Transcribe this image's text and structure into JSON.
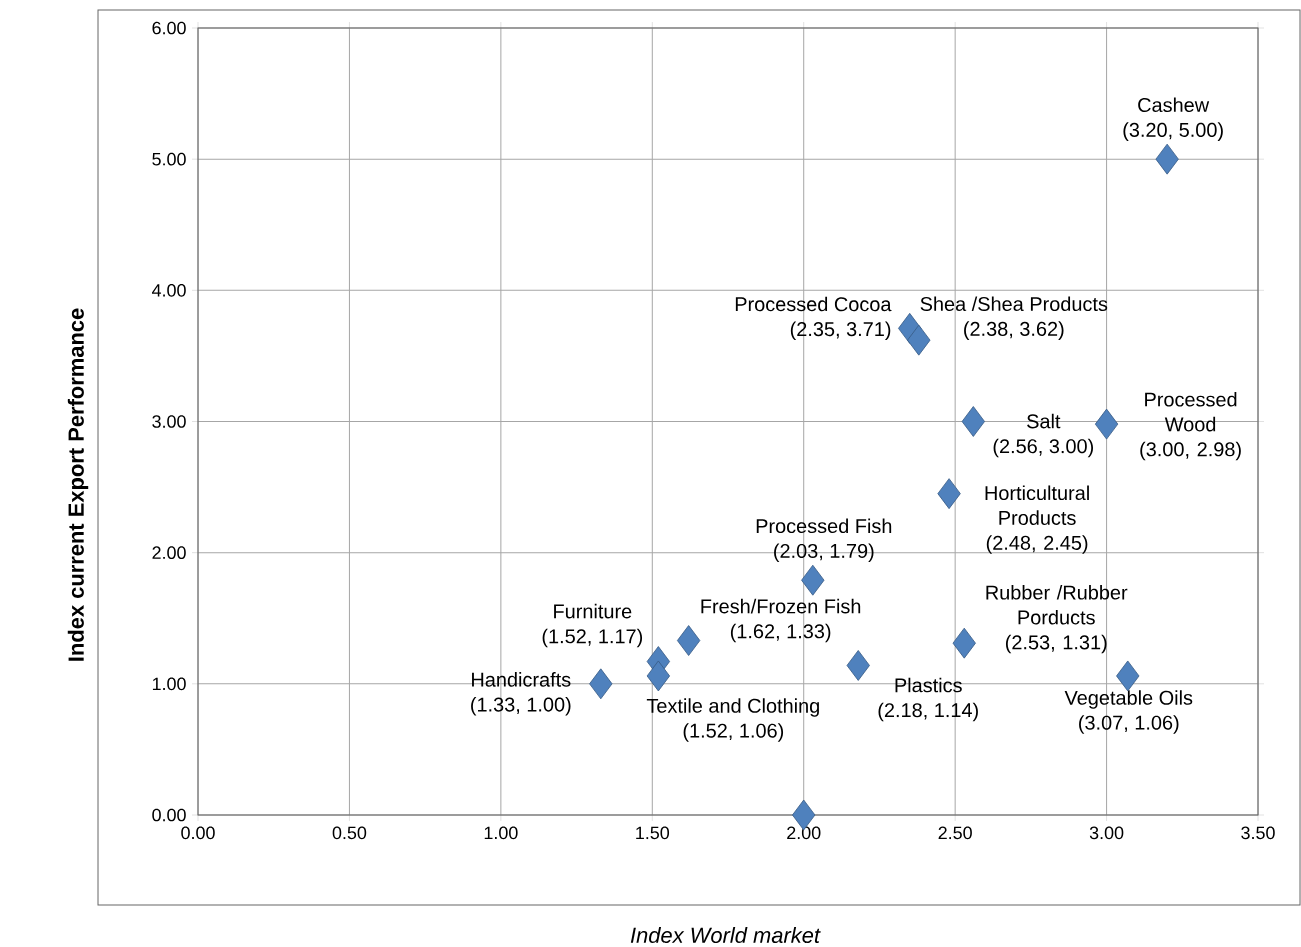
{
  "chart_data": {
    "type": "scatter",
    "xlabel": "Index World market",
    "ylabel": "Index current Export Performance",
    "x": [
      3.2,
      2.35,
      2.38,
      2.56,
      3.0,
      2.48,
      2.03,
      1.62,
      1.52,
      1.52,
      1.33,
      2.18,
      2.53,
      3.07,
      2.0
    ],
    "values": [
      5.0,
      3.71,
      3.62,
      3.0,
      2.98,
      2.45,
      1.79,
      1.33,
      1.17,
      1.06,
      1.0,
      1.14,
      1.31,
      1.06,
      0.0
    ],
    "value_labels": [
      "(3.20, 5.00)",
      "(2.35, 3.71)",
      "(2.38, 3.62)",
      "(2.56, 3.00)",
      "(3.00, 2.98)",
      "(2.48, 2.45)",
      "(2.03, 1.79)",
      "(1.62, 1.33)",
      "(1.52, 1.17)",
      "(1.52, 1.06)",
      "(1.33, 1.00)",
      "(2.18, 1.14)",
      "(2.53, 1.31)",
      "(3.07, 1.06)",
      null
    ],
    "annotations": [
      {
        "text": "Cashew",
        "x": 3.2,
        "y": 5.0
      },
      {
        "text": "Processed Cocoa",
        "x": 2.35,
        "y": 3.71
      },
      {
        "text": "Shea /Shea Products",
        "x": 2.38,
        "y": 3.62
      },
      {
        "text": "Salt",
        "x": 2.56,
        "y": 3.0
      },
      {
        "text": "Processed Wood",
        "x": 3.0,
        "y": 2.98
      },
      {
        "text": "Horticultural Products",
        "x": 2.48,
        "y": 2.45
      },
      {
        "text": "Processed Fish",
        "x": 2.03,
        "y": 1.79
      },
      {
        "text": "Fresh/Frozen Fish",
        "x": 1.62,
        "y": 1.33
      },
      {
        "text": "Furniture",
        "x": 1.52,
        "y": 1.17
      },
      {
        "text": "Textile and Clothing",
        "x": 1.52,
        "y": 1.06
      },
      {
        "text": "Handicrafts",
        "x": 1.33,
        "y": 1.0
      },
      {
        "text": "Plastics",
        "x": 2.18,
        "y": 1.14
      },
      {
        "text": "Rubber /Rubber Porducts",
        "x": 2.53,
        "y": 1.31
      },
      {
        "text": "Vegetable Oils",
        "x": 3.07,
        "y": 1.06
      }
    ],
    "xlim": [
      0,
      3.5
    ],
    "ylim": [
      0,
      6
    ],
    "xticks": [
      {
        "value": 0,
        "label": "0.00"
      },
      {
        "value": 0.5,
        "label": "0.50"
      },
      {
        "value": 1,
        "label": "1.00"
      },
      {
        "value": 1.5,
        "label": "1.50"
      },
      {
        "value": 2,
        "label": "2.00"
      },
      {
        "value": 2.5,
        "label": "2.50"
      },
      {
        "value": 3,
        "label": "3.00"
      },
      {
        "value": 3.5,
        "label": "3.50"
      }
    ],
    "yticks": [
      {
        "value": 0,
        "label": "0.00"
      },
      {
        "value": 1,
        "label": "1.00"
      },
      {
        "value": 2,
        "label": "2.00"
      },
      {
        "value": 3,
        "label": "3.00"
      },
      {
        "value": 4,
        "label": "4.00"
      },
      {
        "value": 5,
        "label": "5.00"
      },
      {
        "value": 6,
        "label": "6.00"
      }
    ],
    "grid": true,
    "marker": "diamond",
    "color": "#4f81bd"
  }
}
